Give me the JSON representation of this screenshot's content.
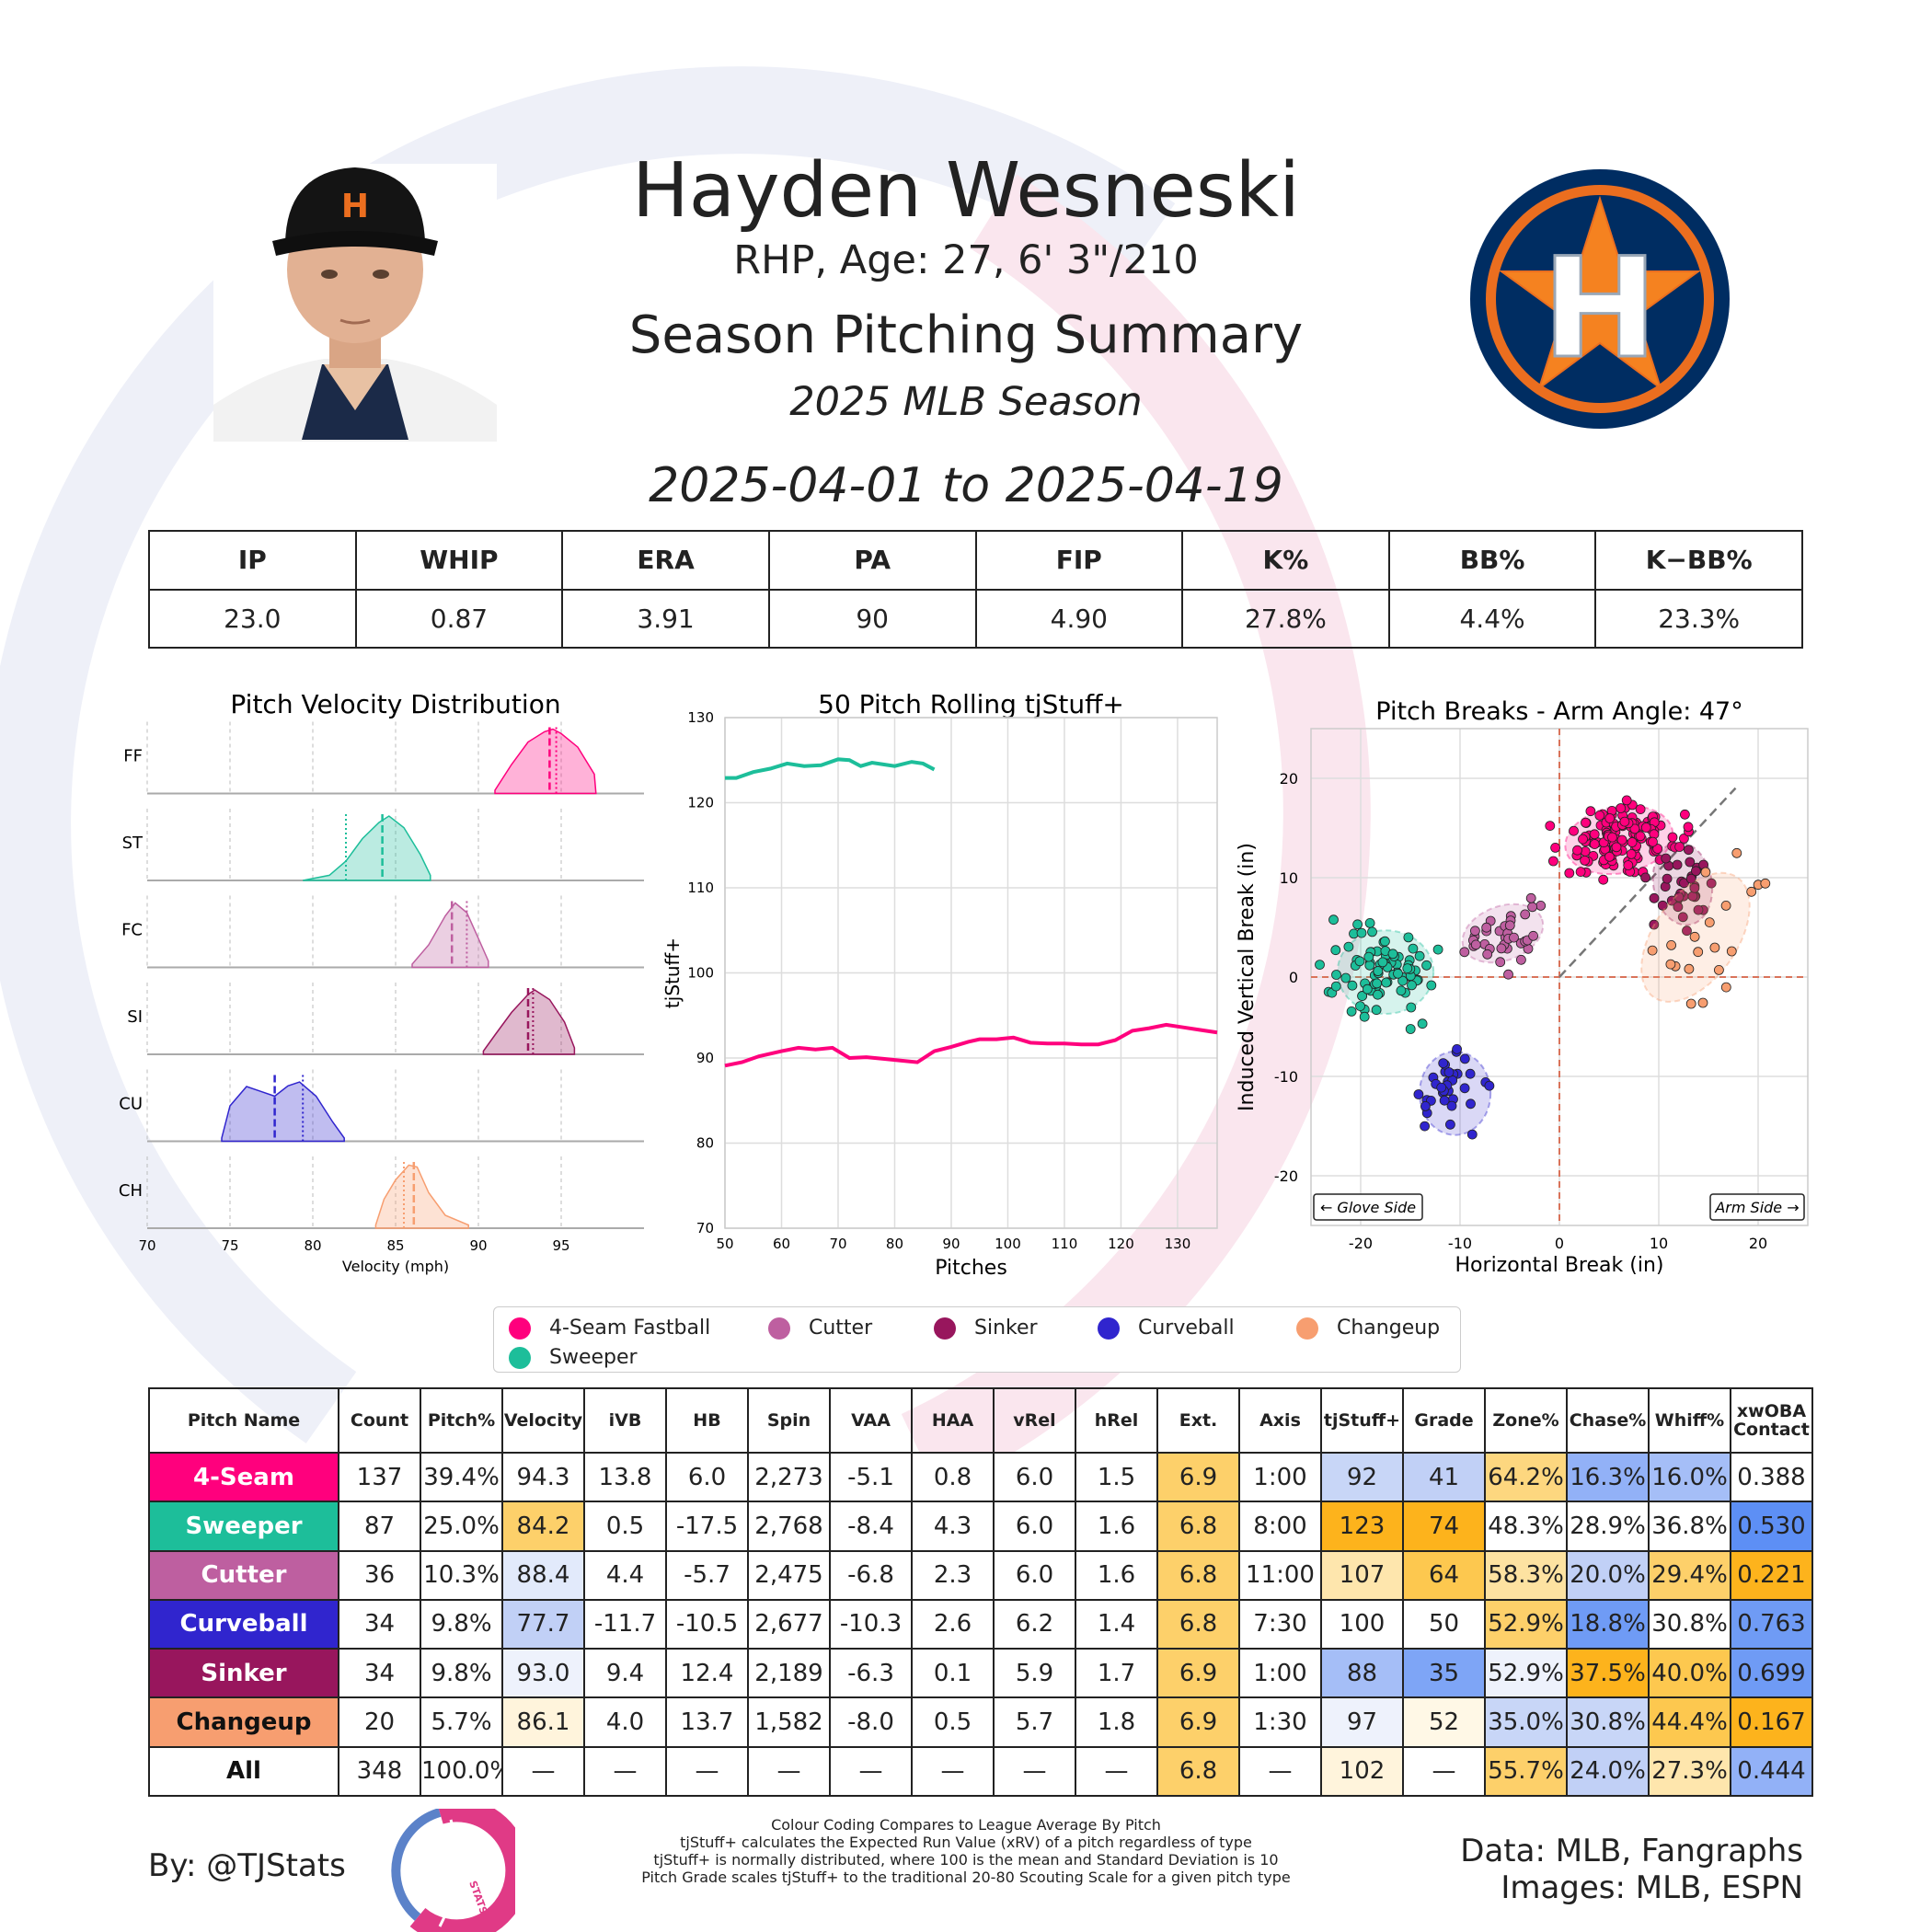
{
  "header": {
    "name": "Hayden Wesneski",
    "bio": "RHP, Age: 27, 6' 3\"/210",
    "subtitle": "Season Pitching Summary",
    "season": "2025 MLB Season",
    "date_range": "2025-04-01 to 2025-04-19"
  },
  "team_logo": {
    "letter": "H",
    "colors": {
      "navy": "#002d62",
      "orange": "#eb6e1f",
      "white": "#ffffff"
    }
  },
  "player_photo": {
    "cap_letter": "H"
  },
  "stats": {
    "headers": [
      "IP",
      "WHIP",
      "ERA",
      "PA",
      "FIP",
      "K%",
      "BB%",
      "K−BB%"
    ],
    "values": [
      "23.0",
      "0.87",
      "3.91",
      "90",
      "4.90",
      "27.8%",
      "4.4%",
      "23.3%"
    ]
  },
  "legend": {
    "items": [
      {
        "label": "4-Seam Fastball",
        "color": "#ff007d"
      },
      {
        "label": "Cutter",
        "color": "#be5fa0"
      },
      {
        "label": "Sinker",
        "color": "#98165d"
      },
      {
        "label": "Curveball",
        "color": "#3025ce"
      },
      {
        "label": "Changeup",
        "color": "#f79e70"
      },
      {
        "label": "Sweeper",
        "color": "#1dbe9a"
      }
    ]
  },
  "chart_data": [
    {
      "type": "area",
      "title": "Pitch Velocity Distribution",
      "xlabel": "Velocity (mph)",
      "xlim": [
        70,
        100
      ],
      "xticks": [
        70,
        75,
        80,
        85,
        90,
        95
      ],
      "rows": [
        {
          "code": "FF",
          "color": "#ff007d",
          "min": 91,
          "max": 97.1,
          "mean": 94.3,
          "league_mean": 94.7,
          "points": [
            [
              91,
              0.05
            ],
            [
              92,
              0.45
            ],
            [
              93,
              0.8
            ],
            [
              94,
              0.96
            ],
            [
              94.5,
              1.0
            ],
            [
              95,
              0.93
            ],
            [
              96,
              0.72
            ],
            [
              97,
              0.3
            ],
            [
              97.1,
              0
            ]
          ]
        },
        {
          "code": "ST",
          "color": "#1dbe9a",
          "min": 79.4,
          "max": 87.1,
          "mean": 84.2,
          "league_mean": 82.0,
          "points": [
            [
              79.4,
              0
            ],
            [
              81,
              0.08
            ],
            [
              82,
              0.3
            ],
            [
              83,
              0.65
            ],
            [
              84,
              0.9
            ],
            [
              84.6,
              1.0
            ],
            [
              85.5,
              0.82
            ],
            [
              86.5,
              0.4
            ],
            [
              87.1,
              0.08
            ]
          ]
        },
        {
          "code": "FC",
          "color": "#be5fa0",
          "min": 86,
          "max": 90.6,
          "mean": 88.4,
          "league_mean": 89.3,
          "points": [
            [
              86,
              0.05
            ],
            [
              87,
              0.35
            ],
            [
              88,
              0.8
            ],
            [
              88.6,
              1.0
            ],
            [
              89.3,
              0.85
            ],
            [
              90,
              0.45
            ],
            [
              90.6,
              0.1
            ]
          ]
        },
        {
          "code": "SI",
          "color": "#98165d",
          "min": 90.3,
          "max": 95.8,
          "mean": 93.0,
          "league_mean": 93.3,
          "points": [
            [
              90.3,
              0.05
            ],
            [
              91,
              0.3
            ],
            [
              92,
              0.65
            ],
            [
              93,
              0.93
            ],
            [
              93.4,
              1.0
            ],
            [
              94.3,
              0.85
            ],
            [
              95.2,
              0.5
            ],
            [
              95.8,
              0.1
            ]
          ]
        },
        {
          "code": "CU",
          "color": "#3025ce",
          "min": 74.5,
          "max": 81.9,
          "mean": 77.7,
          "league_mean": 79.4,
          "points": [
            [
              74.5,
              0.05
            ],
            [
              75,
              0.55
            ],
            [
              76,
              0.85
            ],
            [
              76.8,
              0.78
            ],
            [
              77.7,
              0.7
            ],
            [
              78.5,
              0.86
            ],
            [
              79.2,
              0.92
            ],
            [
              80.2,
              0.7
            ],
            [
              81.2,
              0.3
            ],
            [
              81.9,
              0.05
            ]
          ]
        },
        {
          "code": "CH",
          "color": "#f79e70",
          "min": 83.8,
          "max": 89.4,
          "mean": 86.1,
          "league_mean": 85.5,
          "points": [
            [
              83.8,
              0.05
            ],
            [
              84.3,
              0.45
            ],
            [
              85,
              0.75
            ],
            [
              85.8,
              0.98
            ],
            [
              86.3,
              0.95
            ],
            [
              87,
              0.55
            ],
            [
              88,
              0.2
            ],
            [
              89.4,
              0.05
            ]
          ]
        }
      ]
    },
    {
      "type": "line",
      "title": "50 Pitch Rolling tjStuff+",
      "xlabel": "Pitches",
      "ylabel": "tjStuff+",
      "xlim": [
        50,
        137
      ],
      "ylim": [
        70,
        130
      ],
      "xticks": [
        50,
        60,
        70,
        80,
        90,
        100,
        110,
        120,
        130
      ],
      "yticks": [
        70,
        80,
        90,
        100,
        110,
        120,
        130
      ],
      "series": [
        {
          "name": "Sweeper",
          "color": "#1dbe9a",
          "x": [
            50,
            52,
            55,
            58,
            61,
            64,
            67,
            70,
            72,
            74,
            76,
            78,
            80,
            83,
            85,
            87
          ],
          "y": [
            122.9,
            122.9,
            123.6,
            124.0,
            124.6,
            124.3,
            124.4,
            125.1,
            125.0,
            124.3,
            124.7,
            124.5,
            124.3,
            124.8,
            124.6,
            123.9
          ]
        },
        {
          "name": "4-Seam Fastball",
          "color": "#ff007d",
          "x": [
            50,
            53,
            56,
            60,
            63,
            66,
            69,
            72,
            75,
            78,
            81,
            84,
            87,
            90,
            93,
            95,
            98,
            101,
            104,
            107,
            110,
            113,
            116,
            119,
            122,
            125,
            128,
            131,
            134,
            137
          ],
          "y": [
            89.1,
            89.5,
            90.2,
            90.8,
            91.2,
            91.0,
            91.2,
            90.0,
            90.1,
            89.9,
            89.7,
            89.5,
            90.8,
            91.3,
            91.9,
            92.2,
            92.2,
            92.4,
            91.8,
            91.7,
            91.7,
            91.6,
            91.6,
            92.1,
            93.2,
            93.5,
            93.9,
            93.6,
            93.3,
            93.0
          ]
        }
      ]
    },
    {
      "type": "scatter",
      "title": "Pitch Breaks - Arm Angle: 47°",
      "xlabel": "Horizontal Break (in)",
      "ylabel": "Induced Vertical Break (in)",
      "xlim": [
        -25,
        25
      ],
      "ylim": [
        -25,
        25
      ],
      "xticks": [
        -20,
        -10,
        0,
        10,
        20
      ],
      "yticks": [
        -20,
        -10,
        0,
        10,
        20
      ],
      "arm_angle_deg": 47,
      "glove_side_label": "← Glove Side",
      "arm_side_label": "Arm Side →",
      "series": [
        {
          "name": "4-Seam Fastball",
          "color": "#ff007d",
          "count": 137,
          "mean_hb": 6.0,
          "mean_ivb": 13.8,
          "sd_hb": 2.6,
          "sd_ivb": 1.6,
          "angle": -10
        },
        {
          "name": "Sweeper",
          "color": "#1dbe9a",
          "count": 87,
          "mean_hb": -17.5,
          "mean_ivb": 0.5,
          "sd_hb": 2.3,
          "sd_ivb": 2.0,
          "angle": 0
        },
        {
          "name": "Cutter",
          "color": "#be5fa0",
          "count": 36,
          "mean_hb": -5.7,
          "mean_ivb": 4.4,
          "sd_hb": 2.0,
          "sd_ivb": 1.3,
          "angle": -20
        },
        {
          "name": "Curveball",
          "color": "#3025ce",
          "count": 34,
          "mean_hb": -10.5,
          "mean_ivb": -11.7,
          "sd_hb": 1.7,
          "sd_ivb": 2.0,
          "angle": 0
        },
        {
          "name": "Sinker",
          "color": "#98165d",
          "count": 34,
          "mean_hb": 12.4,
          "mean_ivb": 9.4,
          "sd_hb": 1.4,
          "sd_ivb": 2.0,
          "angle": -10
        },
        {
          "name": "Changeup",
          "color": "#f79e70",
          "count": 20,
          "mean_hb": 13.7,
          "mean_ivb": 4.0,
          "sd_hb": 2.0,
          "sd_ivb": 3.5,
          "angle": 35
        }
      ]
    }
  ],
  "pitch_table": {
    "headers": [
      "Pitch Name",
      "Count",
      "Pitch%",
      "Velocity",
      "iVB",
      "HB",
      "Spin",
      "VAA",
      "HAA",
      "vRel",
      "hRel",
      "Ext.",
      "Axis",
      "tjStuff+",
      "Grade",
      "Zone%",
      "Chase%",
      "Whiff%",
      "xwOBA Contact"
    ],
    "rows": [
      {
        "name": "4-Seam",
        "bg": "#ff007d",
        "fg": "#ffffff",
        "cells": [
          "137",
          "39.4%",
          "94.3",
          "13.8",
          "6.0",
          "2,273",
          "-5.1",
          "0.8",
          "6.0",
          "1.5",
          "6.9",
          "1:00",
          "92",
          "41",
          "64.2%",
          "16.3%",
          "16.0%",
          "0.388"
        ],
        "colors": [
          "#fff",
          "#fff",
          "#fff",
          "#fff",
          "#fff",
          "#fff",
          "#fff",
          "#fff",
          "#fff",
          "#fff",
          "#fdd06a",
          "#fff",
          "#c8d6f7",
          "#c1d0f6",
          "#fdd77f",
          "#92b1f7",
          "#a5bef7",
          "#fff"
        ]
      },
      {
        "name": "Sweeper",
        "bg": "#1dbe9a",
        "fg": "#ffffff",
        "cells": [
          "87",
          "25.0%",
          "84.2",
          "0.5",
          "-17.5",
          "2,768",
          "-8.4",
          "4.3",
          "6.0",
          "1.6",
          "6.8",
          "8:00",
          "123",
          "74",
          "48.3%",
          "28.9%",
          "36.8%",
          "0.530"
        ],
        "colors": [
          "#fff",
          "#fff",
          "#fdd06a",
          "#fff",
          "#fff",
          "#fff",
          "#fff",
          "#fff",
          "#fff",
          "#fff",
          "#fdd06a",
          "#fff",
          "#fdb31c",
          "#fdb31c",
          "#fff",
          "#fff",
          "#fff",
          "#5d8ff5"
        ]
      },
      {
        "name": "Cutter",
        "bg": "#be5fa0",
        "fg": "#ffffff",
        "cells": [
          "36",
          "10.3%",
          "88.4",
          "4.4",
          "-5.7",
          "2,475",
          "-6.8",
          "2.3",
          "6.0",
          "1.6",
          "6.8",
          "11:00",
          "107",
          "64",
          "58.3%",
          "20.0%",
          "29.4%",
          "0.221"
        ],
        "colors": [
          "#fff",
          "#fff",
          "#e2eafb",
          "#fff",
          "#fff",
          "#fff",
          "#fff",
          "#fff",
          "#fff",
          "#fff",
          "#fdd06a",
          "#fff",
          "#fee6ad",
          "#fdc84f",
          "#fde2a1",
          "#c1d0f6",
          "#fdd06a",
          "#fdb31c"
        ]
      },
      {
        "name": "Curveball",
        "bg": "#3025ce",
        "fg": "#ffffff",
        "cells": [
          "34",
          "9.8%",
          "77.7",
          "-11.7",
          "-10.5",
          "2,677",
          "-10.3",
          "2.6",
          "6.2",
          "1.4",
          "6.8",
          "7:30",
          "100",
          "50",
          "52.9%",
          "18.8%",
          "30.8%",
          "0.763"
        ],
        "colors": [
          "#fff",
          "#fff",
          "#c1d0f6",
          "#fff",
          "#fff",
          "#fff",
          "#fff",
          "#fff",
          "#fff",
          "#fff",
          "#fdd06a",
          "#fff",
          "#fff",
          "#fff",
          "#fdd06a",
          "#6f9bf5",
          "#fff",
          "#6f9bf5"
        ]
      },
      {
        "name": "Sinker",
        "bg": "#98165d",
        "fg": "#ffffff",
        "cells": [
          "34",
          "9.8%",
          "93.0",
          "9.4",
          "12.4",
          "2,189",
          "-6.3",
          "0.1",
          "5.9",
          "1.7",
          "6.9",
          "1:00",
          "88",
          "35",
          "52.9%",
          "37.5%",
          "40.0%",
          "0.699"
        ],
        "colors": [
          "#fff",
          "#fff",
          "#eef2fc",
          "#fff",
          "#fff",
          "#fff",
          "#fff",
          "#fff",
          "#fff",
          "#fff",
          "#fdd06a",
          "#fff",
          "#a5bef7",
          "#7ea5f6",
          "#eef2fc",
          "#fdb31c",
          "#fdc84f",
          "#6f9bf5"
        ]
      },
      {
        "name": "Changeup",
        "bg": "#f79e70",
        "fg": "#111111",
        "cells": [
          "20",
          "5.7%",
          "86.1",
          "4.0",
          "13.7",
          "1,582",
          "-8.0",
          "0.5",
          "5.7",
          "1.8",
          "6.9",
          "1:30",
          "97",
          "52",
          "35.0%",
          "30.8%",
          "44.4%",
          "0.167"
        ],
        "colors": [
          "#fff",
          "#fff",
          "#fff4dc",
          "#fff",
          "#fff",
          "#fff",
          "#fff",
          "#fff",
          "#fff",
          "#fff",
          "#fdd06a",
          "#fff",
          "#eef2fc",
          "#fff8e6",
          "#c8d6f7",
          "#c8d6f7",
          "#fdc84f",
          "#fdb31c"
        ]
      },
      {
        "name": "All",
        "bg": "#ffffff",
        "fg": "#111111",
        "cells": [
          "348",
          "100.0%",
          "—",
          "—",
          "—",
          "—",
          "—",
          "—",
          "—",
          "—",
          "6.8",
          "—",
          "102",
          "—",
          "55.7%",
          "24.0%",
          "27.3%",
          "0.444"
        ],
        "colors": [
          "#fff",
          "#fff",
          "#fff",
          "#fff",
          "#fff",
          "#fff",
          "#fff",
          "#fff",
          "#fff",
          "#fff",
          "#fdd06a",
          "#fff",
          "#fff4dc",
          "#fff",
          "#fdd06a",
          "#c1d0f6",
          "#fee6ad",
          "#92b1f7"
        ]
      }
    ]
  },
  "footer": {
    "by": "By: @TJStats",
    "logo_text": "STATS",
    "notes": [
      "Colour Coding Compares to League Average By Pitch",
      "tjStuff+ calculates the Expected Run Value (xRV) of a pitch regardless of type",
      "tjStuff+ is normally distributed, where 100 is the mean and Standard Deviation is 10",
      "Pitch Grade scales tjStuff+ to the traditional 20-80 Scouting Scale for a given pitch type"
    ],
    "data_source": "Data: MLB, Fangraphs",
    "image_source": "Images: MLB, ESPN"
  }
}
